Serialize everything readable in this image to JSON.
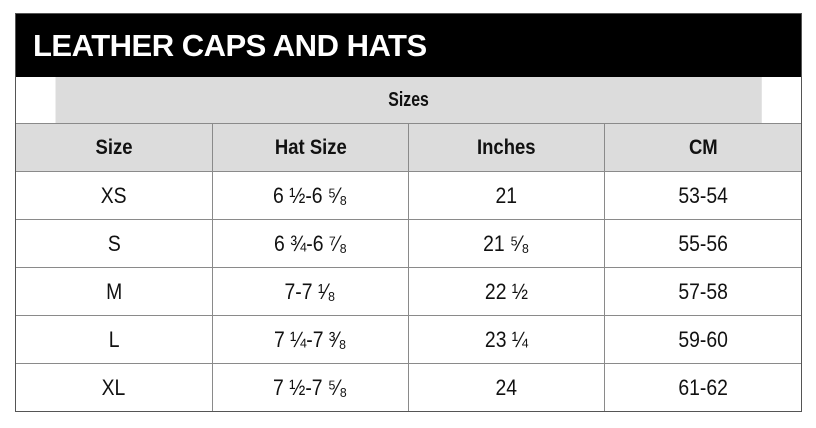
{
  "title": "LEATHER CAPS AND HATS",
  "group_header": "Sizes",
  "columns": [
    "Size",
    "Hat Size",
    "Inches",
    "CM"
  ],
  "rows": [
    {
      "size": "XS",
      "hat_size": "6 ½-6 ⁵⁄₈",
      "inches": "21",
      "cm": "53-54"
    },
    {
      "size": "S",
      "hat_size": "6 ¾-6 ⁷⁄₈",
      "inches": "21 ⁵⁄₈",
      "cm": "55-56"
    },
    {
      "size": "M",
      "hat_size": "7-7 ¹⁄₈",
      "inches": "22 ½",
      "cm": "57-58"
    },
    {
      "size": "L",
      "hat_size": "7 ¼-7 ³⁄₈",
      "inches": "23 ¼",
      "cm": "59-60"
    },
    {
      "size": "XL",
      "hat_size": "7 ½-7 ⁵⁄₈",
      "inches": "24",
      "cm": "61-62"
    }
  ]
}
